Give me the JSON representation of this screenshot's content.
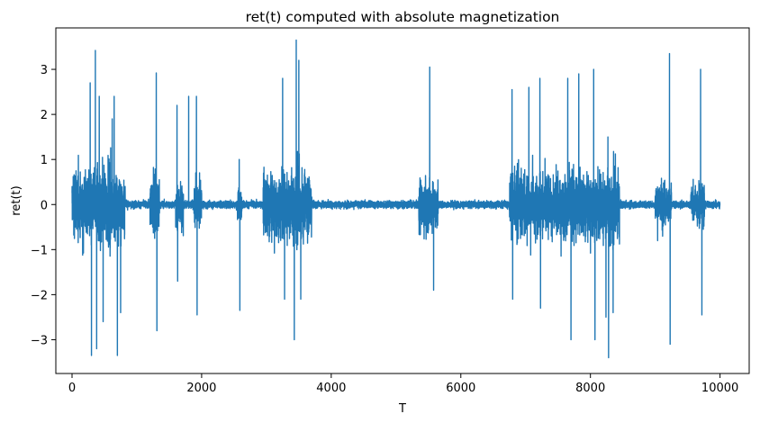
{
  "chart_data": {
    "type": "line",
    "title": "ret(t) computed with absolute magnetization",
    "xlabel": "T",
    "ylabel": "ret(t)",
    "xlim": [
      -250,
      10450
    ],
    "ylim": [
      -3.75,
      3.92
    ],
    "xticks": [
      0,
      2000,
      4000,
      6000,
      8000,
      10000
    ],
    "xtick_labels": [
      "0",
      "2000",
      "4000",
      "6000",
      "8000",
      "10000"
    ],
    "yticks": [
      -3,
      -2,
      -1,
      0,
      1,
      2,
      3
    ],
    "ytick_labels": [
      "−3",
      "−2",
      "−1",
      "0",
      "1",
      "2",
      "3"
    ],
    "grid": false,
    "n_points": 10000,
    "series": [
      {
        "color": "#1f77b4",
        "baseline_noise_amplitude": 0.1,
        "volatility_clusters": [
          {
            "x_start": 0,
            "x_end": 820,
            "amplitude": 1.3
          },
          {
            "x_start": 1200,
            "x_end": 1350,
            "amplitude": 1.1
          },
          {
            "x_start": 1600,
            "x_end": 1720,
            "amplitude": 0.9
          },
          {
            "x_start": 1880,
            "x_end": 2000,
            "amplitude": 0.8
          },
          {
            "x_start": 2550,
            "x_end": 2620,
            "amplitude": 0.6
          },
          {
            "x_start": 2950,
            "x_end": 3700,
            "amplitude": 1.2
          },
          {
            "x_start": 5350,
            "x_end": 5650,
            "amplitude": 0.9
          },
          {
            "x_start": 6750,
            "x_end": 8450,
            "amplitude": 1.2
          },
          {
            "x_start": 9000,
            "x_end": 9250,
            "amplitude": 0.8
          },
          {
            "x_start": 9550,
            "x_end": 9760,
            "amplitude": 0.8
          }
        ],
        "spikes": [
          {
            "x": 280,
            "y": 2.7
          },
          {
            "x": 300,
            "y": -3.35
          },
          {
            "x": 360,
            "y": 3.42
          },
          {
            "x": 380,
            "y": -3.2
          },
          {
            "x": 420,
            "y": 2.4
          },
          {
            "x": 480,
            "y": -2.6
          },
          {
            "x": 620,
            "y": 1.9
          },
          {
            "x": 650,
            "y": 2.4
          },
          {
            "x": 700,
            "y": -3.35
          },
          {
            "x": 750,
            "y": -2.4
          },
          {
            "x": 1300,
            "y": 2.92
          },
          {
            "x": 1310,
            "y": -2.8
          },
          {
            "x": 1620,
            "y": 2.2
          },
          {
            "x": 1630,
            "y": -1.7
          },
          {
            "x": 1800,
            "y": 2.4
          },
          {
            "x": 1920,
            "y": 2.4
          },
          {
            "x": 1930,
            "y": -2.45
          },
          {
            "x": 2580,
            "y": 1.0
          },
          {
            "x": 2590,
            "y": -2.35
          },
          {
            "x": 3250,
            "y": 2.8
          },
          {
            "x": 3280,
            "y": -2.1
          },
          {
            "x": 3430,
            "y": -3.0
          },
          {
            "x": 3460,
            "y": 3.65
          },
          {
            "x": 3500,
            "y": 3.2
          },
          {
            "x": 3530,
            "y": -2.1
          },
          {
            "x": 5520,
            "y": 3.05
          },
          {
            "x": 5580,
            "y": -1.9
          },
          {
            "x": 6790,
            "y": 2.55
          },
          {
            "x": 6800,
            "y": -2.1
          },
          {
            "x": 7050,
            "y": 2.6
          },
          {
            "x": 7220,
            "y": 2.8
          },
          {
            "x": 7230,
            "y": -2.3
          },
          {
            "x": 7650,
            "y": 2.8
          },
          {
            "x": 7700,
            "y": -3.0
          },
          {
            "x": 7820,
            "y": 2.9
          },
          {
            "x": 8050,
            "y": 3.0
          },
          {
            "x": 8070,
            "y": -3.0
          },
          {
            "x": 8240,
            "y": -2.5
          },
          {
            "x": 8270,
            "y": 1.5
          },
          {
            "x": 8280,
            "y": -3.4
          },
          {
            "x": 8350,
            "y": -2.4
          },
          {
            "x": 9220,
            "y": 3.35
          },
          {
            "x": 9230,
            "y": -3.1
          },
          {
            "x": 9700,
            "y": 3.0
          },
          {
            "x": 9720,
            "y": -2.45
          }
        ]
      }
    ]
  }
}
